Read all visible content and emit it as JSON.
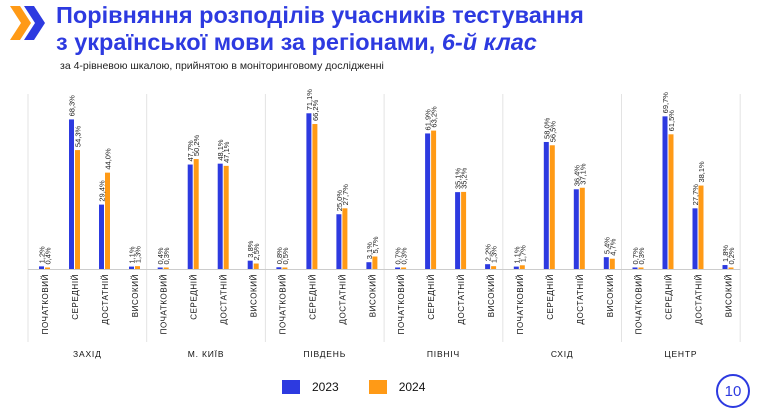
{
  "header": {
    "title_line1": "Порівняння розподілів учасників тестування",
    "title_line2_main": "з української мови за регіонами, ",
    "title_line2_italic": "6-й клас",
    "subtitle": "за 4-рівневою шкалою, прийнятою в моніторинговому дослідженні"
  },
  "page_number": "10",
  "colors": {
    "series_2023": "#2d3ae0",
    "series_2024": "#ff9a16",
    "accent": "#2d3ae0",
    "accent_light": "#ff9a16"
  },
  "legend": [
    {
      "label": "2023",
      "color": "#2d3ae0"
    },
    {
      "label": "2024",
      "color": "#ff9a16"
    }
  ],
  "chart_data": {
    "type": "bar",
    "title": "Порівняння розподілів учасників тестування з української мови за регіонами, 6-й клас",
    "subtitle": "за 4-рівневою шкалою, прийнятою в моніторинговому дослідженні",
    "levels": [
      "ПОЧАТКОВИЙ",
      "СЕРЕДНІЙ",
      "ДОСТАТНІЙ",
      "ВИСОКИЙ"
    ],
    "series_names": [
      "2023",
      "2024"
    ],
    "ylim": [
      0,
      75
    ],
    "legend_position": "bottom",
    "groups": [
      {
        "region": "ЗАХІД",
        "values_2023": [
          1.2,
          68.3,
          29.4,
          1.1
        ],
        "labels_2023": [
          "1,2%",
          "68,3%",
          "29,4%",
          "1,1%"
        ],
        "values_2024": [
          0.4,
          54.3,
          44.0,
          1.3
        ],
        "labels_2024": [
          "0,4%",
          "54,3%",
          "44,0%",
          "1,3%"
        ]
      },
      {
        "region": "М. КИЇВ",
        "values_2023": [
          0.4,
          47.7,
          48.1,
          3.8
        ],
        "labels_2023": [
          "0,4%",
          "47,7%",
          "48,1%",
          "3,8%"
        ],
        "values_2024": [
          0.3,
          50.2,
          47.1,
          2.5
        ],
        "labels_2024": [
          "0,3%",
          "50,2%",
          "47,1%",
          "2,5%"
        ]
      },
      {
        "region": "ПІВДЕНЬ",
        "values_2023": [
          0.8,
          71.1,
          25.0,
          3.1
        ],
        "labels_2023": [
          "0,8%",
          "71,1%",
          "25,0%",
          "3,1%"
        ],
        "values_2024": [
          0.5,
          66.2,
          27.7,
          5.7
        ],
        "labels_2024": [
          "0,5%",
          "66,2%",
          "27,7%",
          "5,7%"
        ]
      },
      {
        "region": "ПІВНІЧ",
        "values_2023": [
          0.7,
          61.9,
          35.1,
          2.2
        ],
        "labels_2023": [
          "0,7%",
          "61,9%",
          "35,1%",
          "2,2%"
        ],
        "values_2024": [
          0.3,
          63.2,
          35.2,
          1.3
        ],
        "labels_2024": [
          "0,3%",
          "63,2%",
          "35,2%",
          "1,3%"
        ]
      },
      {
        "region": "СХІД",
        "values_2023": [
          1.1,
          58.0,
          36.4,
          5.4
        ],
        "labels_2023": [
          "1,1%",
          "58,0%",
          "36,4%",
          "5,4%"
        ],
        "values_2024": [
          1.7,
          56.5,
          37.1,
          4.7
        ],
        "labels_2024": [
          "1,7%",
          "56,5%",
          "37,1%",
          "4,7%"
        ]
      },
      {
        "region": "ЦЕНТР",
        "values_2023": [
          0.7,
          69.7,
          27.7,
          1.8
        ],
        "labels_2023": [
          "0,7%",
          "69,7%",
          "27,7%",
          "1,8%"
        ],
        "values_2024": [
          0.3,
          61.5,
          38.1,
          0.2
        ],
        "labels_2024": [
          "0,3%",
          "61,5%",
          "38,1%",
          "0,2%"
        ]
      }
    ]
  }
}
